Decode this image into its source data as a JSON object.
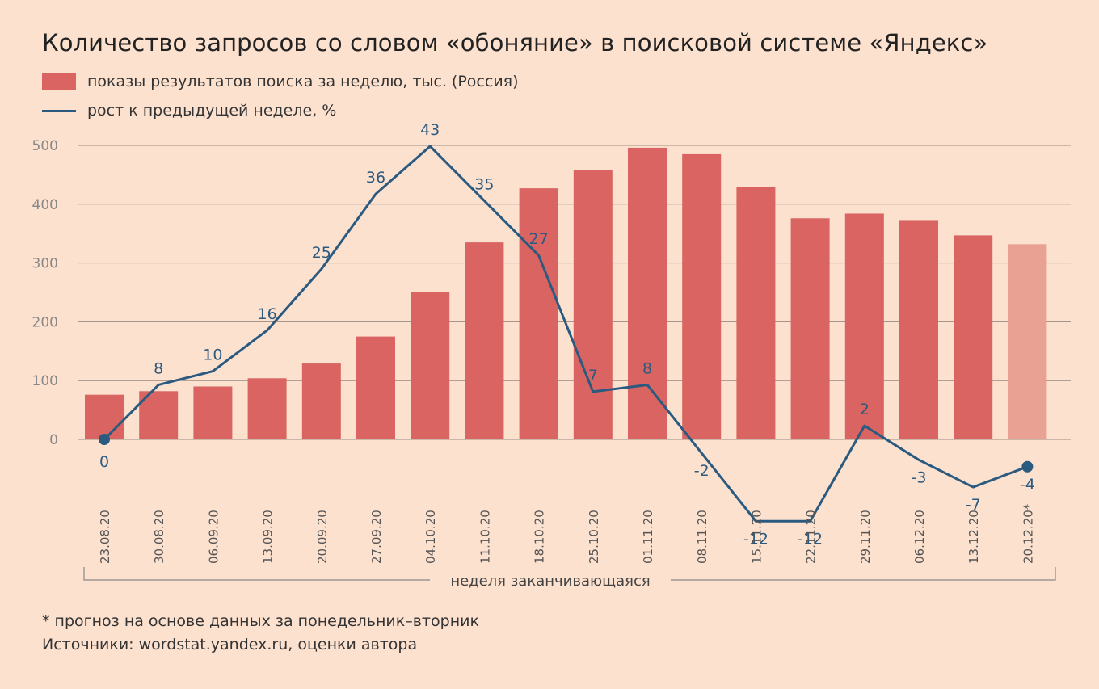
{
  "title": "Количество запросов со словом «обоняние» в поисковой системе «Яндекс»",
  "legend": {
    "bars": "показы результатов поиска за неделю, тыс. (Россия)",
    "line": "рост к предыдущей неделе, %"
  },
  "footnote": "* прогноз на основе данных за понедельник–вторник",
  "source": "Источники: wordstat.yandex.ru, оценки автора",
  "colors": {
    "background": "#fde1cf",
    "bar": "#d96461",
    "bar_forecast": "#e8a193",
    "line": "#2a5a80",
    "grid": "#9a8a80",
    "axis_text": "#888888"
  },
  "chart_data": {
    "type": "bar",
    "title": "Количество запросов со словом «обоняние» в поисковой системе «Яндекс»",
    "xlabel": "неделя заканчивающаяся",
    "ylim": [
      0,
      500
    ],
    "yticks": [
      0,
      100,
      200,
      300,
      400,
      500
    ],
    "grid": true,
    "legend_position": "top-left",
    "categories": [
      "23.08.20",
      "30.08.20",
      "06.09.20",
      "13.09.20",
      "20.09.20",
      "27.09.20",
      "04.10.20",
      "11.10.20",
      "18.10.20",
      "25.10.20",
      "01.11.20",
      "08.11.20",
      "15.11.20",
      "22.11.20",
      "29.11.20",
      "06.12.20",
      "13.12.20",
      "20.12.20*"
    ],
    "series": [
      {
        "name": "показы результатов поиска за неделю, тыс. (Россия)",
        "type": "bar",
        "values": [
          76,
          82,
          90,
          104,
          129,
          175,
          250,
          335,
          427,
          458,
          496,
          485,
          429,
          376,
          384,
          373,
          347,
          332
        ],
        "forecast_last": true
      },
      {
        "name": "рост к предыдущей неделе, %",
        "type": "line",
        "values": [
          0,
          8,
          10,
          16,
          25,
          36,
          43,
          35,
          27,
          7,
          8,
          -2,
          -12,
          -12,
          2,
          -3,
          -7,
          -4
        ],
        "labels": [
          "0",
          "8",
          "10",
          "16",
          "25",
          "36",
          "43",
          "35",
          "27",
          "7",
          "8",
          "-2",
          "-12",
          "-12",
          "2",
          "-3",
          "-7",
          "-4"
        ],
        "marked_points": [
          0,
          17
        ]
      }
    ]
  }
}
